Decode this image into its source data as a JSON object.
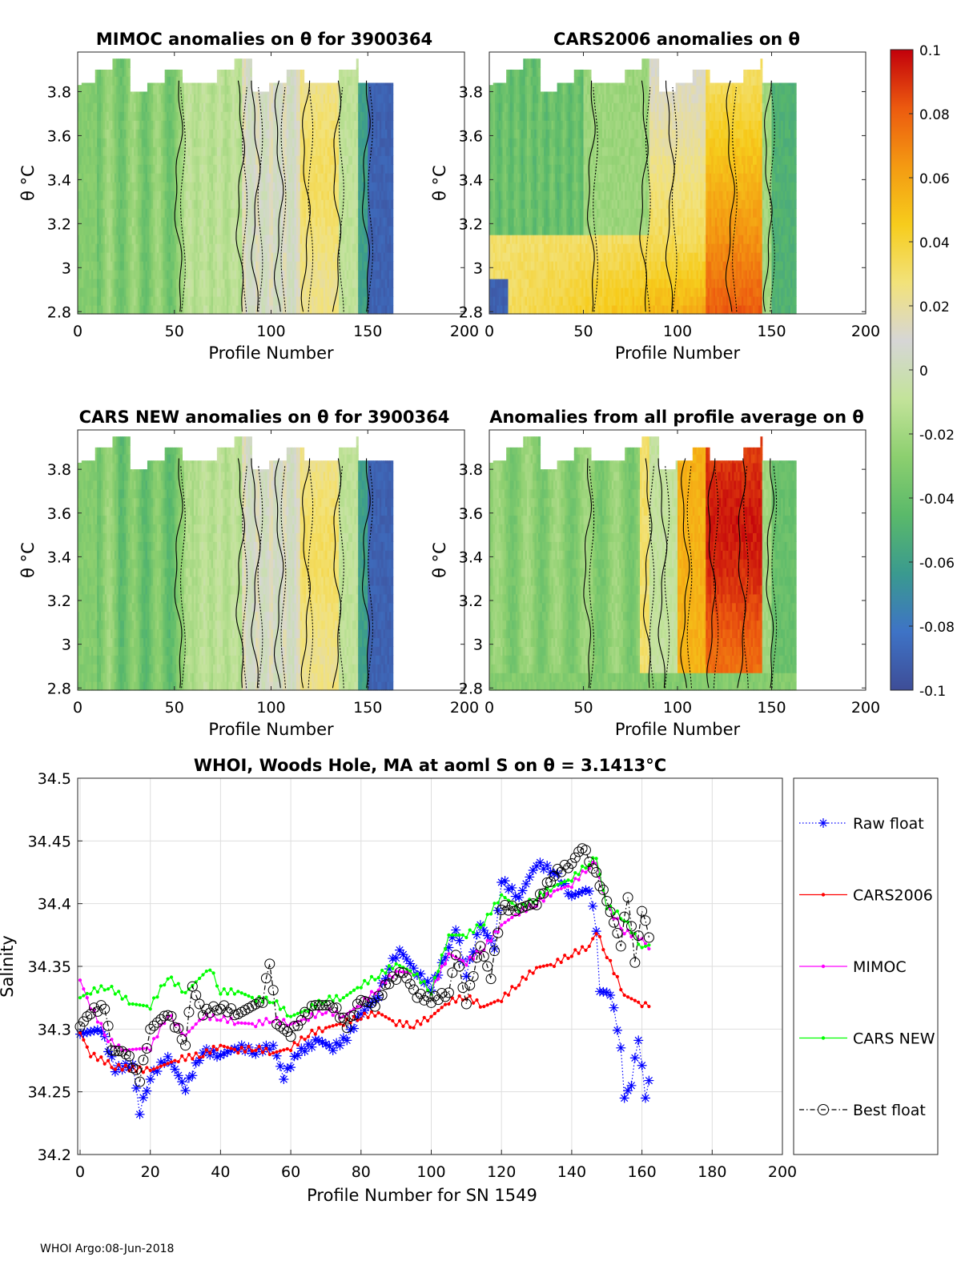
{
  "panels": [
    {
      "id": "p1",
      "title": "MIMOC anomalies on θ  for 3900364",
      "xlabel": "Profile Number",
      "ylabel": "θ °C",
      "xlim": [
        0,
        200
      ],
      "ylim": [
        2.79,
        3.98
      ],
      "xticks": [
        0,
        50,
        100,
        150,
        200
      ],
      "yticks": [
        2.8,
        3,
        3.2,
        3.4,
        3.6,
        3.8
      ],
      "base": -0.015,
      "pattern": "mimoc"
    },
    {
      "id": "p2",
      "title": "CARS2006 anomalies on θ",
      "xlabel": "Profile Number",
      "ylabel": "θ °C",
      "xlim": [
        0,
        200
      ],
      "ylim": [
        2.79,
        3.98
      ],
      "xticks": [
        0,
        50,
        100,
        150,
        200
      ],
      "yticks": [
        2.8,
        3,
        3.2,
        3.4,
        3.6,
        3.8
      ],
      "base": -0.02,
      "pattern": "cars2006"
    },
    {
      "id": "p3",
      "title": "CARS NEW anomalies on θ for 3900364",
      "xlabel": "Profile Number",
      "ylabel": "θ °C",
      "xlim": [
        0,
        200
      ],
      "ylim": [
        2.79,
        3.98
      ],
      "xticks": [
        0,
        50,
        100,
        150,
        200
      ],
      "yticks": [
        2.8,
        3,
        3.2,
        3.4,
        3.6,
        3.8
      ],
      "base": -0.015,
      "pattern": "carsnew"
    },
    {
      "id": "p4",
      "title": "Anomalies from all profile average on θ",
      "xlabel": "Profile Number",
      "ylabel": "θ °C",
      "xlim": [
        0,
        200
      ],
      "ylim": [
        2.79,
        3.98
      ],
      "xticks": [
        0,
        50,
        100,
        150,
        200
      ],
      "yticks": [
        2.8,
        3,
        3.2,
        3.4,
        3.6,
        3.8
      ],
      "base": -0.02,
      "pattern": "allavg"
    }
  ],
  "colorbar": {
    "min": -0.1,
    "max": 0.1,
    "ticks": [
      "0.1",
      "0.08",
      "0.06",
      "0.04",
      "0.02",
      "0",
      "-0.02",
      "-0.04",
      "-0.06",
      "-0.08",
      "-0.1"
    ],
    "stops": [
      "#3e4d97",
      "#3e73c6",
      "#3a9a8f",
      "#5ab96a",
      "#8ccf6f",
      "#c3e39a",
      "#d6d6d6",
      "#f2e27a",
      "#f6cc1c",
      "#f49a12",
      "#ec5a0f",
      "#c2000b"
    ]
  },
  "chart_data": {
    "type": "line",
    "title": "WHOI, Woods Hole, MA at aoml S on θ = 3.1413°C",
    "xlabel": "Profile Number for SN 1549",
    "ylabel": "Salinity",
    "xlim": [
      0,
      200
    ],
    "ylim": [
      34.2,
      34.5
    ],
    "xticks": [
      0,
      20,
      40,
      60,
      80,
      100,
      120,
      140,
      160,
      180,
      200
    ],
    "yticks": [
      "34.2",
      "34.25",
      "34.3",
      "34.35",
      "34.4",
      "34.45",
      "34.5"
    ],
    "grid": true,
    "legend_position": "outside-right",
    "series": [
      {
        "name": "Raw float",
        "color": "#0000ff",
        "style": "star-dotted",
        "anchors": [
          [
            0,
            34.296
          ],
          [
            6,
            34.3
          ],
          [
            10,
            34.268
          ],
          [
            15,
            34.272
          ],
          [
            17,
            34.234
          ],
          [
            20,
            34.262
          ],
          [
            25,
            34.278
          ],
          [
            30,
            34.253
          ],
          [
            35,
            34.283
          ],
          [
            40,
            34.279
          ],
          [
            45,
            34.286
          ],
          [
            50,
            34.282
          ],
          [
            55,
            34.287
          ],
          [
            58,
            34.262
          ],
          [
            62,
            34.281
          ],
          [
            68,
            34.291
          ],
          [
            72,
            34.285
          ],
          [
            76,
            34.293
          ],
          [
            80,
            34.312
          ],
          [
            85,
            34.327
          ],
          [
            88,
            34.35
          ],
          [
            91,
            34.363
          ],
          [
            96,
            34.345
          ],
          [
            100,
            34.333
          ],
          [
            104,
            34.357
          ],
          [
            107,
            34.381
          ],
          [
            110,
            34.344
          ],
          [
            114,
            34.383
          ],
          [
            118,
            34.366
          ],
          [
            120,
            34.419
          ],
          [
            125,
            34.405
          ],
          [
            130,
            34.432
          ],
          [
            135,
            34.426
          ],
          [
            140,
            34.406
          ],
          [
            145,
            34.412
          ],
          [
            147,
            34.38
          ],
          [
            148,
            34.33
          ],
          [
            151,
            34.329
          ],
          [
            154,
            34.287
          ],
          [
            155,
            34.245
          ],
          [
            157,
            34.257
          ],
          [
            159,
            34.293
          ],
          [
            161,
            34.245
          ],
          [
            162,
            34.259
          ]
        ]
      },
      {
        "name": "CARS2006",
        "color": "#ff0000",
        "style": "dot-solid",
        "anchors": [
          [
            0,
            34.297
          ],
          [
            3,
            34.28
          ],
          [
            10,
            34.27
          ],
          [
            20,
            34.267
          ],
          [
            28,
            34.276
          ],
          [
            35,
            34.28
          ],
          [
            40,
            34.287
          ],
          [
            45,
            34.283
          ],
          [
            50,
            34.285
          ],
          [
            55,
            34.281
          ],
          [
            60,
            34.285
          ],
          [
            65,
            34.296
          ],
          [
            70,
            34.301
          ],
          [
            75,
            34.305
          ],
          [
            80,
            34.31
          ],
          [
            85,
            34.313
          ],
          [
            90,
            34.305
          ],
          [
            95,
            34.303
          ],
          [
            100,
            34.31
          ],
          [
            105,
            34.322
          ],
          [
            110,
            34.326
          ],
          [
            115,
            34.318
          ],
          [
            120,
            34.324
          ],
          [
            125,
            34.337
          ],
          [
            130,
            34.349
          ],
          [
            135,
            34.352
          ],
          [
            140,
            34.36
          ],
          [
            145,
            34.366
          ],
          [
            147,
            34.378
          ],
          [
            150,
            34.359
          ],
          [
            155,
            34.327
          ],
          [
            160,
            34.32
          ],
          [
            162,
            34.318
          ]
        ]
      },
      {
        "name": "MIMOC",
        "color": "#ff00ff",
        "style": "dot-solid",
        "anchors": [
          [
            0,
            34.339
          ],
          [
            3,
            34.318
          ],
          [
            8,
            34.292
          ],
          [
            12,
            34.283
          ],
          [
            20,
            34.285
          ],
          [
            25,
            34.312
          ],
          [
            30,
            34.295
          ],
          [
            35,
            34.31
          ],
          [
            40,
            34.309
          ],
          [
            45,
            34.305
          ],
          [
            50,
            34.304
          ],
          [
            55,
            34.308
          ],
          [
            60,
            34.304
          ],
          [
            65,
            34.309
          ],
          [
            70,
            34.315
          ],
          [
            75,
            34.31
          ],
          [
            80,
            34.32
          ],
          [
            85,
            34.333
          ],
          [
            90,
            34.346
          ],
          [
            95,
            34.345
          ],
          [
            100,
            34.33
          ],
          [
            105,
            34.36
          ],
          [
            110,
            34.353
          ],
          [
            115,
            34.365
          ],
          [
            120,
            34.383
          ],
          [
            125,
            34.393
          ],
          [
            130,
            34.4
          ],
          [
            135,
            34.41
          ],
          [
            140,
            34.415
          ],
          [
            145,
            34.43
          ],
          [
            147,
            34.432
          ],
          [
            150,
            34.398
          ],
          [
            155,
            34.378
          ],
          [
            160,
            34.372
          ],
          [
            162,
            34.364
          ]
        ]
      },
      {
        "name": "CARS NEW",
        "color": "#00ff00",
        "style": "dot-solid",
        "anchors": [
          [
            0,
            34.325
          ],
          [
            3,
            34.33
          ],
          [
            8,
            34.334
          ],
          [
            15,
            34.32
          ],
          [
            20,
            34.318
          ],
          [
            25,
            34.342
          ],
          [
            30,
            34.329
          ],
          [
            37,
            34.349
          ],
          [
            40,
            34.33
          ],
          [
            45,
            34.33
          ],
          [
            50,
            34.324
          ],
          [
            55,
            34.323
          ],
          [
            60,
            34.31
          ],
          [
            65,
            34.316
          ],
          [
            70,
            34.324
          ],
          [
            75,
            34.325
          ],
          [
            80,
            34.335
          ],
          [
            85,
            34.343
          ],
          [
            90,
            34.352
          ],
          [
            95,
            34.345
          ],
          [
            100,
            34.33
          ],
          [
            105,
            34.375
          ],
          [
            110,
            34.375
          ],
          [
            115,
            34.385
          ],
          [
            120,
            34.407
          ],
          [
            125,
            34.396
          ],
          [
            130,
            34.405
          ],
          [
            135,
            34.414
          ],
          [
            140,
            34.42
          ],
          [
            145,
            34.433
          ],
          [
            147,
            34.436
          ],
          [
            150,
            34.398
          ],
          [
            155,
            34.388
          ],
          [
            160,
            34.365
          ],
          [
            162,
            34.367
          ]
        ]
      },
      {
        "name": "Best float",
        "color": "#000000",
        "style": "circle-dashdot",
        "anchors": [
          [
            0,
            34.302
          ],
          [
            3,
            34.314
          ],
          [
            7,
            34.318
          ],
          [
            9,
            34.283
          ],
          [
            13,
            34.282
          ],
          [
            17,
            34.26
          ],
          [
            20,
            34.3
          ],
          [
            25,
            34.313
          ],
          [
            30,
            34.289
          ],
          [
            32,
            34.334
          ],
          [
            35,
            34.313
          ],
          [
            40,
            34.318
          ],
          [
            45,
            34.312
          ],
          [
            52,
            34.323
          ],
          [
            54,
            34.354
          ],
          [
            56,
            34.304
          ],
          [
            60,
            34.296
          ],
          [
            63,
            34.309
          ],
          [
            67,
            34.319
          ],
          [
            72,
            34.319
          ],
          [
            76,
            34.303
          ],
          [
            80,
            34.323
          ],
          [
            84,
            34.32
          ],
          [
            88,
            34.338
          ],
          [
            92,
            34.345
          ],
          [
            96,
            34.327
          ],
          [
            100,
            34.323
          ],
          [
            105,
            34.329
          ],
          [
            107,
            34.361
          ],
          [
            110,
            34.322
          ],
          [
            114,
            34.366
          ],
          [
            117,
            34.342
          ],
          [
            120,
            34.397
          ],
          [
            125,
            34.396
          ],
          [
            130,
            34.401
          ],
          [
            135,
            34.424
          ],
          [
            140,
            34.432
          ],
          [
            143,
            34.446
          ],
          [
            146,
            34.43
          ],
          [
            150,
            34.402
          ],
          [
            154,
            34.368
          ],
          [
            156,
            34.407
          ],
          [
            158,
            34.353
          ],
          [
            160,
            34.396
          ],
          [
            162,
            34.373
          ]
        ]
      }
    ]
  },
  "footer": "WHOI Argo:08-Jun-2018"
}
